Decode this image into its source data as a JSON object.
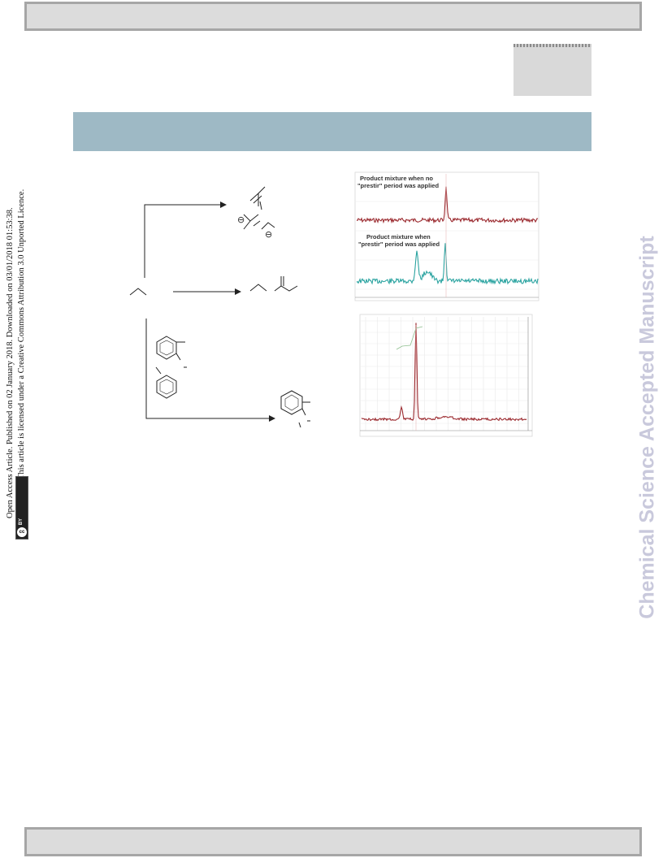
{
  "article_notice": {
    "line1": "Open Access Article. Published on 02 January 2018. Downloaded on 03/01/2018 01:53:38.",
    "line2": "This article is licensed under a Creative Commons Attribution 3.0 Unported Licence.",
    "badge_cc": "cc",
    "badge_by": "BY"
  },
  "watermark": "Chemical Science Accepted Manuscript",
  "spectra_top": {
    "annotation_1_line1": "Product mixture when no",
    "annotation_1_line2": "\"prestir\" period was applied",
    "annotation_2_line1": "Product mixture when",
    "annotation_2_line2": "\"prestir\" period was applied",
    "trace_colors": [
      "#9b2a2f",
      "#2aa3a0"
    ]
  },
  "spectra_bottom": {
    "trace_color": "#9b2a2f"
  },
  "scheme": {
    "charge_symbol": "⊖"
  }
}
